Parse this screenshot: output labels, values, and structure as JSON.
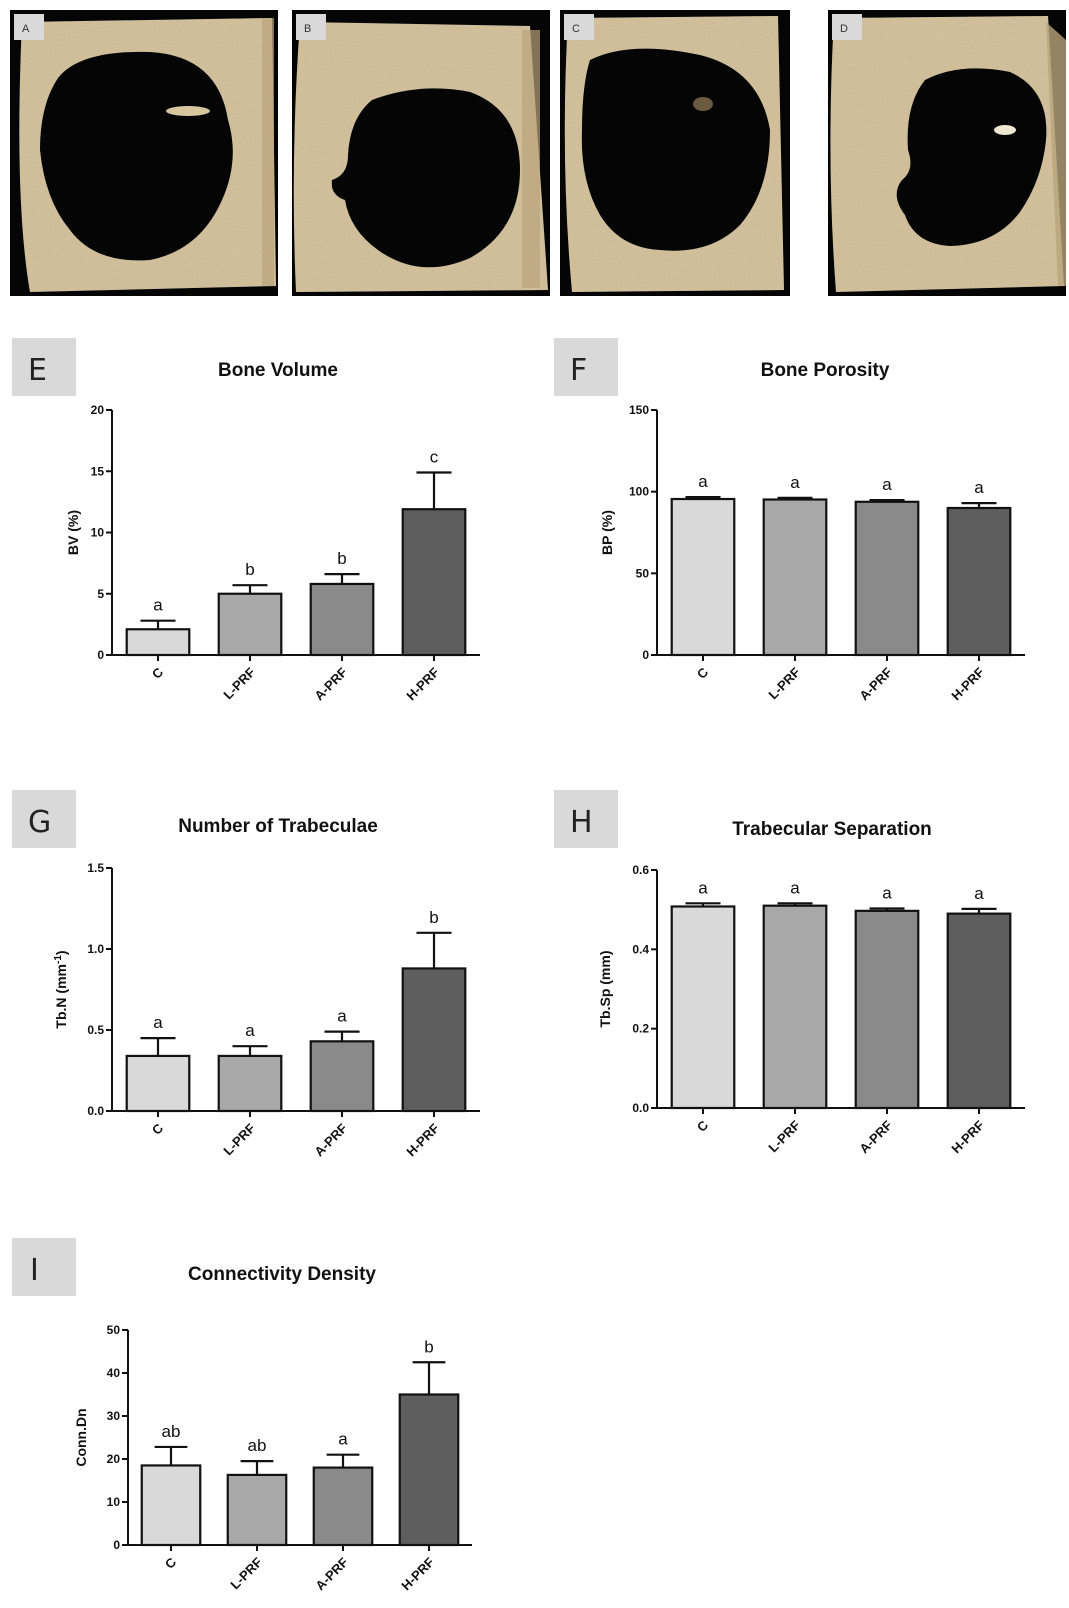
{
  "images": [
    {
      "label": "A"
    },
    {
      "label": "B"
    },
    {
      "label": "C"
    },
    {
      "label": "D"
    }
  ],
  "colors": {
    "bone": "#d8c6a0",
    "bone_dark": "#b9a47a",
    "defect": "#050505",
    "letter_box": "#d9d9d9",
    "bar_fills": [
      "#d9d9d9",
      "#a8a8a8",
      "#8a8a8a",
      "#5e5e5e"
    ]
  },
  "chart_data": [
    {
      "panel": "E",
      "type": "bar",
      "title": "Bone Volume",
      "ylabel": "BV (%)",
      "ylabel_sup": "",
      "categories": [
        "C",
        "L-PRF",
        "A-PRF",
        "H-PRF"
      ],
      "values": [
        2.1,
        5.0,
        5.8,
        11.9
      ],
      "errors": [
        0.7,
        0.7,
        0.8,
        3.0
      ],
      "letters": [
        "a",
        "b",
        "b",
        "c"
      ],
      "ylim": [
        0,
        20
      ],
      "yticks": [
        0,
        5,
        10,
        15,
        20
      ],
      "ytick_labels": [
        "0",
        "5",
        "10",
        "15",
        "20"
      ]
    },
    {
      "panel": "F",
      "type": "bar",
      "title": "Bone Porosity",
      "ylabel": "BP (%)",
      "ylabel_sup": "",
      "categories": [
        "C",
        "L-PRF",
        "A-PRF",
        "H-PRF"
      ],
      "values": [
        95.5,
        95.2,
        93.8,
        90.0
      ],
      "errors": [
        1.2,
        1.0,
        1.0,
        3.0
      ],
      "letters": [
        "a",
        "a",
        "a",
        "a"
      ],
      "ylim": [
        0,
        150
      ],
      "yticks": [
        0,
        50,
        100,
        150
      ],
      "ytick_labels": [
        "0",
        "50",
        "100",
        "150"
      ]
    },
    {
      "panel": "G",
      "type": "bar",
      "title": "Number of Trabeculae",
      "ylabel": "Tb.N (mm",
      "ylabel_sup": "-1",
      "ylabel_end": ")",
      "categories": [
        "C",
        "L-PRF",
        "A-PRF",
        "H-PRF"
      ],
      "values": [
        0.34,
        0.34,
        0.43,
        0.88
      ],
      "errors": [
        0.11,
        0.06,
        0.06,
        0.22
      ],
      "letters": [
        "a",
        "a",
        "a",
        "b"
      ],
      "ylim": [
        0,
        1.5
      ],
      "yticks": [
        0,
        0.5,
        1.0,
        1.5
      ],
      "ytick_labels": [
        "0.0",
        "0.5",
        "1.0",
        "1.5"
      ]
    },
    {
      "panel": "H",
      "type": "bar",
      "title": "Trabecular Separation",
      "ylabel": "Tb.Sp (mm)",
      "ylabel_sup": "",
      "categories": [
        "C",
        "L-PRF",
        "A-PRF",
        "H-PRF"
      ],
      "values": [
        0.508,
        0.51,
        0.497,
        0.49
      ],
      "errors": [
        0.008,
        0.006,
        0.006,
        0.012
      ],
      "letters": [
        "a",
        "a",
        "a",
        "a"
      ],
      "ylim": [
        0,
        0.6
      ],
      "yticks": [
        0,
        0.2,
        0.4,
        0.6
      ],
      "ytick_labels": [
        "0.0",
        "0.2",
        "0.4",
        "0.6"
      ]
    },
    {
      "panel": "I",
      "type": "bar",
      "title": "Connectivity Density",
      "ylabel": "Conn.Dn",
      "ylabel_sup": "",
      "categories": [
        "C",
        "L-PRF",
        "A-PRF",
        "H-PRF"
      ],
      "values": [
        18.5,
        16.3,
        18.0,
        35.0
      ],
      "errors": [
        4.3,
        3.2,
        3.0,
        7.5
      ],
      "letters": [
        "ab",
        "ab",
        "a",
        "b"
      ],
      "ylim": [
        0,
        50
      ],
      "yticks": [
        0,
        10,
        20,
        30,
        40,
        50
      ],
      "ytick_labels": [
        "0",
        "10",
        "20",
        "30",
        "40",
        "50"
      ]
    }
  ]
}
